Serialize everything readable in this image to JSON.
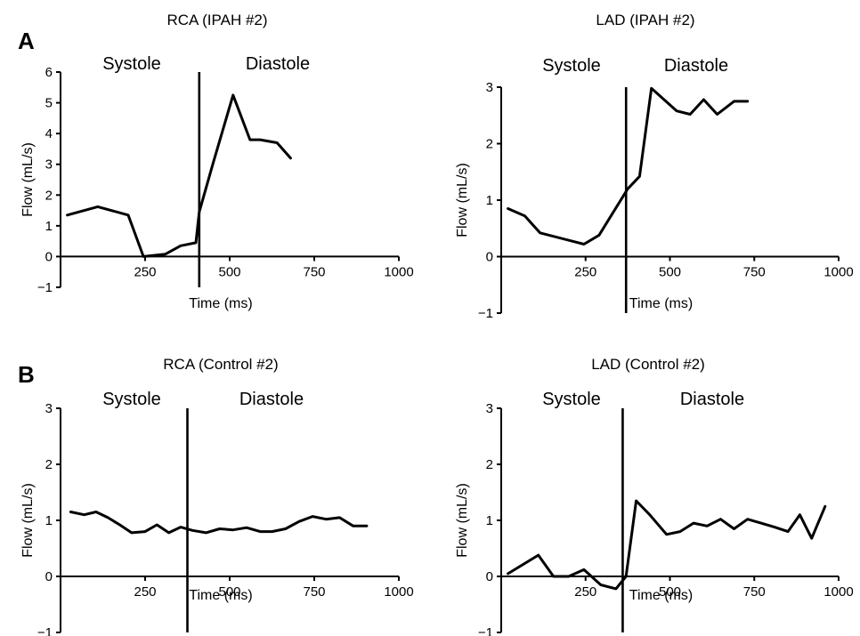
{
  "panel_labels": {
    "a": "A",
    "b": "B"
  },
  "chart_data": [
    {
      "type": "line",
      "title": "RCA (IPAH #2)",
      "xlabel": "Time (ms)",
      "ylabel": "Flow (mL/s)",
      "xlim": [
        0,
        1000
      ],
      "ylim": [
        -1,
        6
      ],
      "xticks": [
        250,
        500,
        750,
        1000
      ],
      "yticks": [
        -1,
        0,
        1,
        2,
        3,
        4,
        5,
        6
      ],
      "phase_labels": [
        "Systole",
        "Diastole"
      ],
      "divider_x": 410,
      "series": [
        {
          "x": [
            20,
            110,
            200,
            245,
            310,
            355,
            400,
            410,
            450,
            510,
            560,
            590,
            640,
            680
          ],
          "y": [
            1.35,
            1.62,
            1.35,
            0.0,
            0.08,
            0.35,
            0.45,
            1.45,
            3.0,
            5.25,
            3.8,
            3.8,
            3.7,
            3.2
          ]
        }
      ]
    },
    {
      "type": "line",
      "title": "LAD (IPAH #2)",
      "xlabel": "Time (ms)",
      "ylabel": "Flow (mL/s)",
      "xlim": [
        0,
        1000
      ],
      "ylim": [
        -1,
        3
      ],
      "xticks": [
        250,
        500,
        750,
        1000
      ],
      "yticks": [
        -1,
        0,
        1,
        2,
        3
      ],
      "phase_labels": [
        "Systole",
        "Diastole"
      ],
      "divider_x": 370,
      "series": [
        {
          "x": [
            20,
            70,
            115,
            245,
            290,
            375,
            410,
            445,
            520,
            560,
            600,
            640,
            690,
            730
          ],
          "y": [
            0.85,
            0.72,
            0.42,
            0.22,
            0.38,
            1.2,
            1.42,
            2.98,
            2.58,
            2.52,
            2.78,
            2.52,
            2.75,
            2.75
          ]
        }
      ]
    },
    {
      "type": "line",
      "title": "RCA (Control #2)",
      "xlabel": "Time (ms)",
      "ylabel": "Flow (mL/s)",
      "xlim": [
        0,
        1000
      ],
      "ylim": [
        -1,
        3
      ],
      "xticks": [
        250,
        500,
        750,
        1000
      ],
      "yticks": [
        -1,
        0,
        1,
        2,
        3
      ],
      "phase_labels": [
        "Systole",
        "Diastole"
      ],
      "divider_x": 375,
      "series": [
        {
          "x": [
            30,
            70,
            105,
            140,
            175,
            210,
            250,
            285,
            320,
            355,
            390,
            430,
            470,
            510,
            550,
            590,
            625,
            665,
            705,
            745,
            785,
            825,
            865,
            905
          ],
          "y": [
            1.15,
            1.1,
            1.15,
            1.05,
            0.92,
            0.78,
            0.8,
            0.92,
            0.78,
            0.88,
            0.82,
            0.78,
            0.85,
            0.83,
            0.87,
            0.8,
            0.8,
            0.85,
            0.98,
            1.07,
            1.02,
            1.05,
            0.9,
            0.9
          ]
        }
      ]
    },
    {
      "type": "line",
      "title": "LAD (Control #2)",
      "xlabel": "Time (ms)",
      "ylabel": "Flow (mL/s)",
      "xlim": [
        0,
        1000
      ],
      "ylim": [
        -1,
        3
      ],
      "xticks": [
        250,
        500,
        750,
        1000
      ],
      "yticks": [
        -1,
        0,
        1,
        2,
        3
      ],
      "phase_labels": [
        "Systole",
        "Diastole"
      ],
      "divider_x": 360,
      "series": [
        {
          "x": [
            20,
            110,
            155,
            200,
            245,
            295,
            340,
            370,
            400,
            440,
            490,
            530,
            570,
            610,
            650,
            690,
            730,
            770,
            810,
            850,
            885,
            920,
            960
          ],
          "y": [
            0.05,
            0.38,
            0.0,
            0.0,
            0.12,
            -0.15,
            -0.22,
            0.0,
            1.35,
            1.1,
            0.75,
            0.8,
            0.95,
            0.9,
            1.02,
            0.85,
            1.02,
            0.95,
            0.88,
            0.8,
            1.1,
            0.68,
            1.25
          ]
        }
      ]
    }
  ]
}
